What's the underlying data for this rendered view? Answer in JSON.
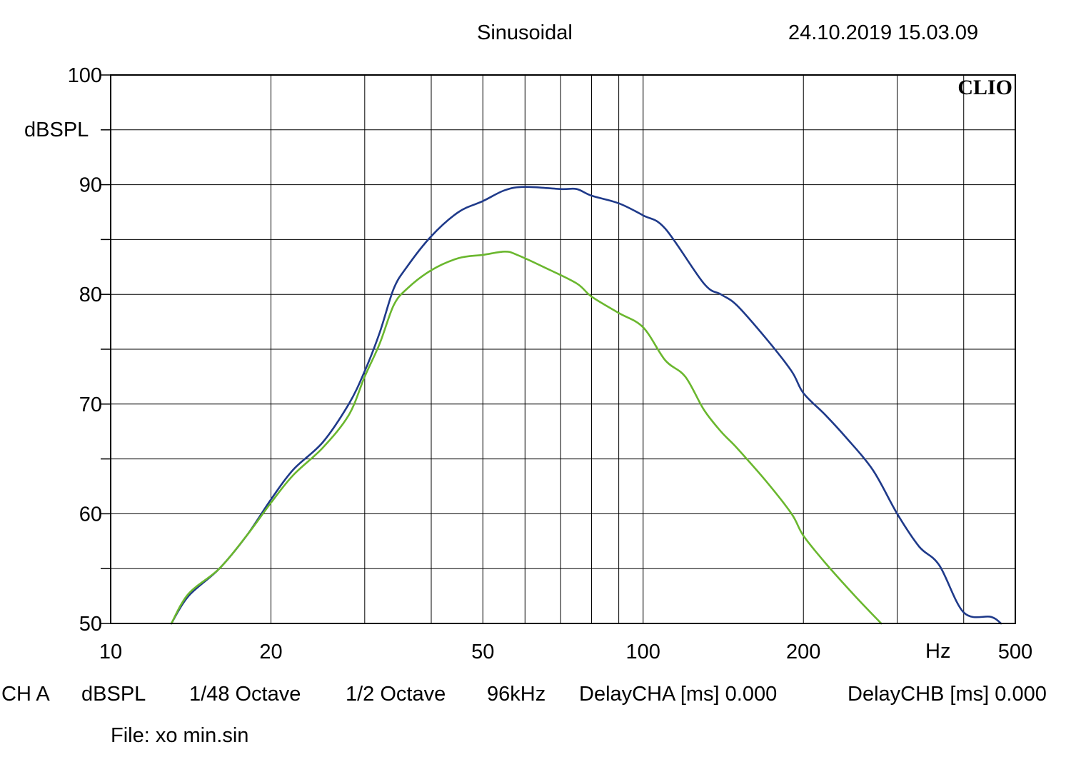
{
  "header": {
    "mode": "Sinusoidal",
    "timestamp": "24.10.2019 15.03.09"
  },
  "brand": "CLIO",
  "footer": {
    "settings": [
      "CH A",
      "dBSPL",
      "1/48 Octave",
      "1/2 Octave",
      "96kHz",
      "DelayCHA [ms] 0.000",
      "DelayCHB [ms] 0.000"
    ],
    "file": "File: xo min.sin"
  },
  "colors": {
    "series_blue": "#1f3a8a",
    "series_green": "#6ab72e",
    "grid": "#000000"
  },
  "chart_data": {
    "type": "line",
    "title": "Sinusoidal",
    "xlabel": "Hz",
    "ylabel": "dBSPL",
    "xscale": "log",
    "xlim": [
      10,
      500
    ],
    "ylim": [
      50,
      100
    ],
    "xticks": [
      10,
      20,
      50,
      100,
      200,
      500
    ],
    "xtick_labels": [
      "10",
      "20",
      "50",
      "100",
      "200",
      "500"
    ],
    "xgrid_minor": [
      30,
      40,
      60,
      70,
      80,
      90,
      300,
      400
    ],
    "yticks": [
      50,
      60,
      70,
      80,
      90,
      100
    ],
    "ytick_labels": [
      "50",
      "60",
      "70",
      "80",
      "90",
      "100"
    ],
    "ygrid_minor": [
      55,
      65,
      75,
      85,
      95
    ],
    "grid": true,
    "series": [
      {
        "color": "#1f3a8a",
        "x": [
          13,
          14,
          16,
          18,
          20,
          22,
          25,
          28,
          30,
          32,
          34,
          36,
          40,
          45,
          50,
          55,
          60,
          70,
          75,
          80,
          90,
          100,
          110,
          130,
          140,
          150,
          170,
          190,
          200,
          220,
          240,
          270,
          300,
          330,
          360,
          400,
          450,
          470
        ],
        "y": [
          50,
          52.5,
          55,
          58,
          61.3,
          64,
          66.5,
          70,
          73,
          76.5,
          80.5,
          82.5,
          85.3,
          87.5,
          88.5,
          89.5,
          89.8,
          89.6,
          89.6,
          89,
          88.3,
          87.2,
          86,
          81,
          80,
          79,
          76,
          73,
          71,
          69,
          67,
          64,
          60,
          57,
          55.3,
          51,
          50.6,
          50
        ]
      },
      {
        "color": "#6ab72e",
        "x": [
          13,
          14,
          16,
          18,
          20,
          22,
          25,
          28,
          30,
          32,
          34,
          36,
          40,
          45,
          50,
          55,
          58,
          65,
          75,
          80,
          90,
          100,
          110,
          120,
          130,
          140,
          150,
          170,
          190,
          200,
          220,
          250,
          280
        ],
        "y": [
          50,
          52.7,
          55,
          58,
          61,
          63.5,
          66,
          69,
          72.5,
          75.5,
          79,
          80.5,
          82.2,
          83.3,
          83.6,
          83.9,
          83.6,
          82.5,
          81,
          79.8,
          78.3,
          77,
          74,
          72.5,
          69.5,
          67.5,
          66,
          63,
          60,
          58,
          55.5,
          52.5,
          50
        ]
      }
    ]
  }
}
